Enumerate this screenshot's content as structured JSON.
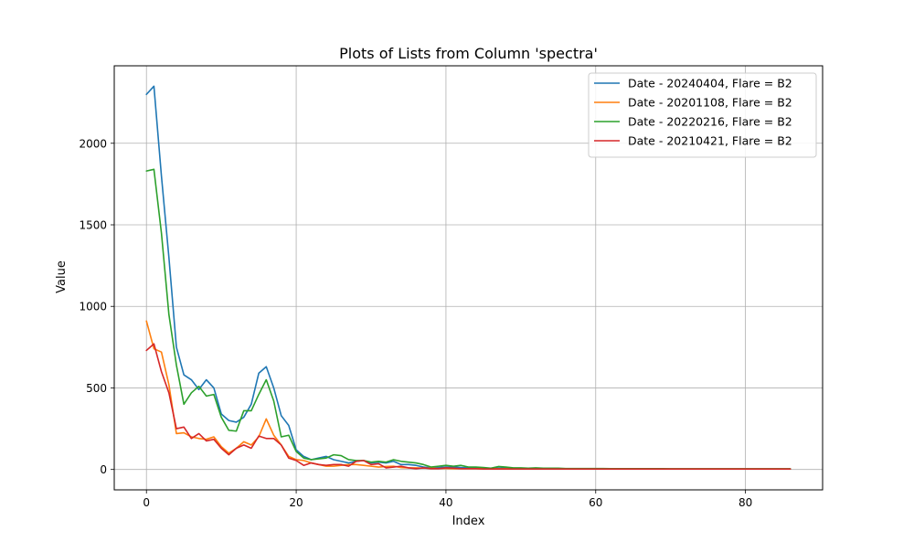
{
  "chart_data": {
    "type": "line",
    "title": "Plots of Lists from Column 'spectra'",
    "xlabel": "Index",
    "ylabel": "Value",
    "xlim": [
      -4.3,
      90.3
    ],
    "ylim": [
      -125,
      2475
    ],
    "xticks": [
      0,
      20,
      40,
      60,
      80
    ],
    "yticks": [
      0,
      500,
      1000,
      1500,
      2000
    ],
    "grid": true,
    "legend_position": "top-right",
    "series": [
      {
        "name": "Date - 20240404, Flare = B2",
        "color": "#1f77b4",
        "values": [
          2300,
          2350,
          1800,
          1300,
          750,
          580,
          550,
          490,
          550,
          500,
          340,
          300,
          290,
          320,
          400,
          590,
          630,
          500,
          330,
          270,
          120,
          80,
          60,
          70,
          80,
          60,
          50,
          40,
          50,
          55,
          40,
          45,
          40,
          50,
          30,
          30,
          25,
          15,
          10,
          12,
          15,
          15,
          12,
          10,
          10,
          8,
          8,
          8,
          8,
          6,
          6,
          6,
          6,
          5,
          5,
          5,
          5,
          5,
          4,
          4,
          4,
          4,
          4,
          4,
          4,
          4,
          3,
          3,
          3,
          3,
          3,
          3,
          3,
          3,
          3,
          3,
          3,
          3,
          3,
          3,
          3,
          3,
          3,
          3,
          3,
          3,
          3
        ]
      },
      {
        "name": "Date - 20201108, Flare = B2",
        "color": "#ff7f0e",
        "values": [
          910,
          740,
          720,
          520,
          220,
          225,
          200,
          190,
          185,
          200,
          140,
          100,
          130,
          170,
          150,
          200,
          310,
          210,
          150,
          80,
          60,
          55,
          40,
          30,
          20,
          20,
          25,
          30,
          30,
          25,
          20,
          15,
          18,
          20,
          12,
          10,
          10,
          8,
          8,
          6,
          6,
          5,
          5,
          5,
          5,
          4,
          4,
          4,
          4,
          4,
          4,
          4,
          4,
          3,
          3,
          3,
          3,
          3,
          3,
          3,
          3,
          3,
          3,
          3,
          3,
          3,
          3,
          3,
          3,
          3,
          3,
          3,
          3,
          3,
          3,
          3,
          3,
          3,
          3,
          3,
          3,
          3,
          3,
          3,
          3,
          3,
          3
        ]
      },
      {
        "name": "Date - 20220216, Flare = B2",
        "color": "#2ca02c",
        "values": [
          1830,
          1840,
          1450,
          950,
          640,
          400,
          470,
          510,
          450,
          460,
          320,
          240,
          235,
          360,
          360,
          460,
          550,
          420,
          200,
          210,
          110,
          70,
          60,
          65,
          70,
          90,
          85,
          60,
          55,
          55,
          45,
          50,
          45,
          60,
          50,
          45,
          40,
          30,
          15,
          20,
          25,
          20,
          25,
          15,
          15,
          12,
          8,
          18,
          15,
          10,
          10,
          8,
          10,
          8,
          8,
          8,
          6,
          6,
          6,
          6,
          6,
          6,
          5,
          5,
          5,
          5,
          5,
          5,
          5,
          5,
          4,
          4,
          4,
          4,
          4,
          4,
          4,
          4,
          4,
          4,
          4,
          4,
          4,
          4,
          4,
          4,
          4
        ]
      },
      {
        "name": "Date - 20210421, Flare = B2",
        "color": "#d62728",
        "values": [
          730,
          770,
          600,
          470,
          250,
          260,
          190,
          220,
          175,
          185,
          130,
          90,
          130,
          150,
          130,
          205,
          190,
          190,
          150,
          70,
          55,
          25,
          40,
          30,
          25,
          30,
          30,
          20,
          50,
          55,
          30,
          35,
          10,
          15,
          20,
          10,
          5,
          10,
          5,
          5,
          10,
          8,
          5,
          5,
          5,
          3,
          3,
          3,
          3,
          3,
          3,
          3,
          3,
          3,
          3,
          3,
          3,
          3,
          3,
          3,
          3,
          3,
          3,
          3,
          3,
          3,
          3,
          3,
          3,
          3,
          3,
          3,
          3,
          3,
          3,
          3,
          3,
          3,
          3,
          3,
          3,
          3,
          3,
          3,
          3,
          3,
          3
        ]
      }
    ]
  }
}
